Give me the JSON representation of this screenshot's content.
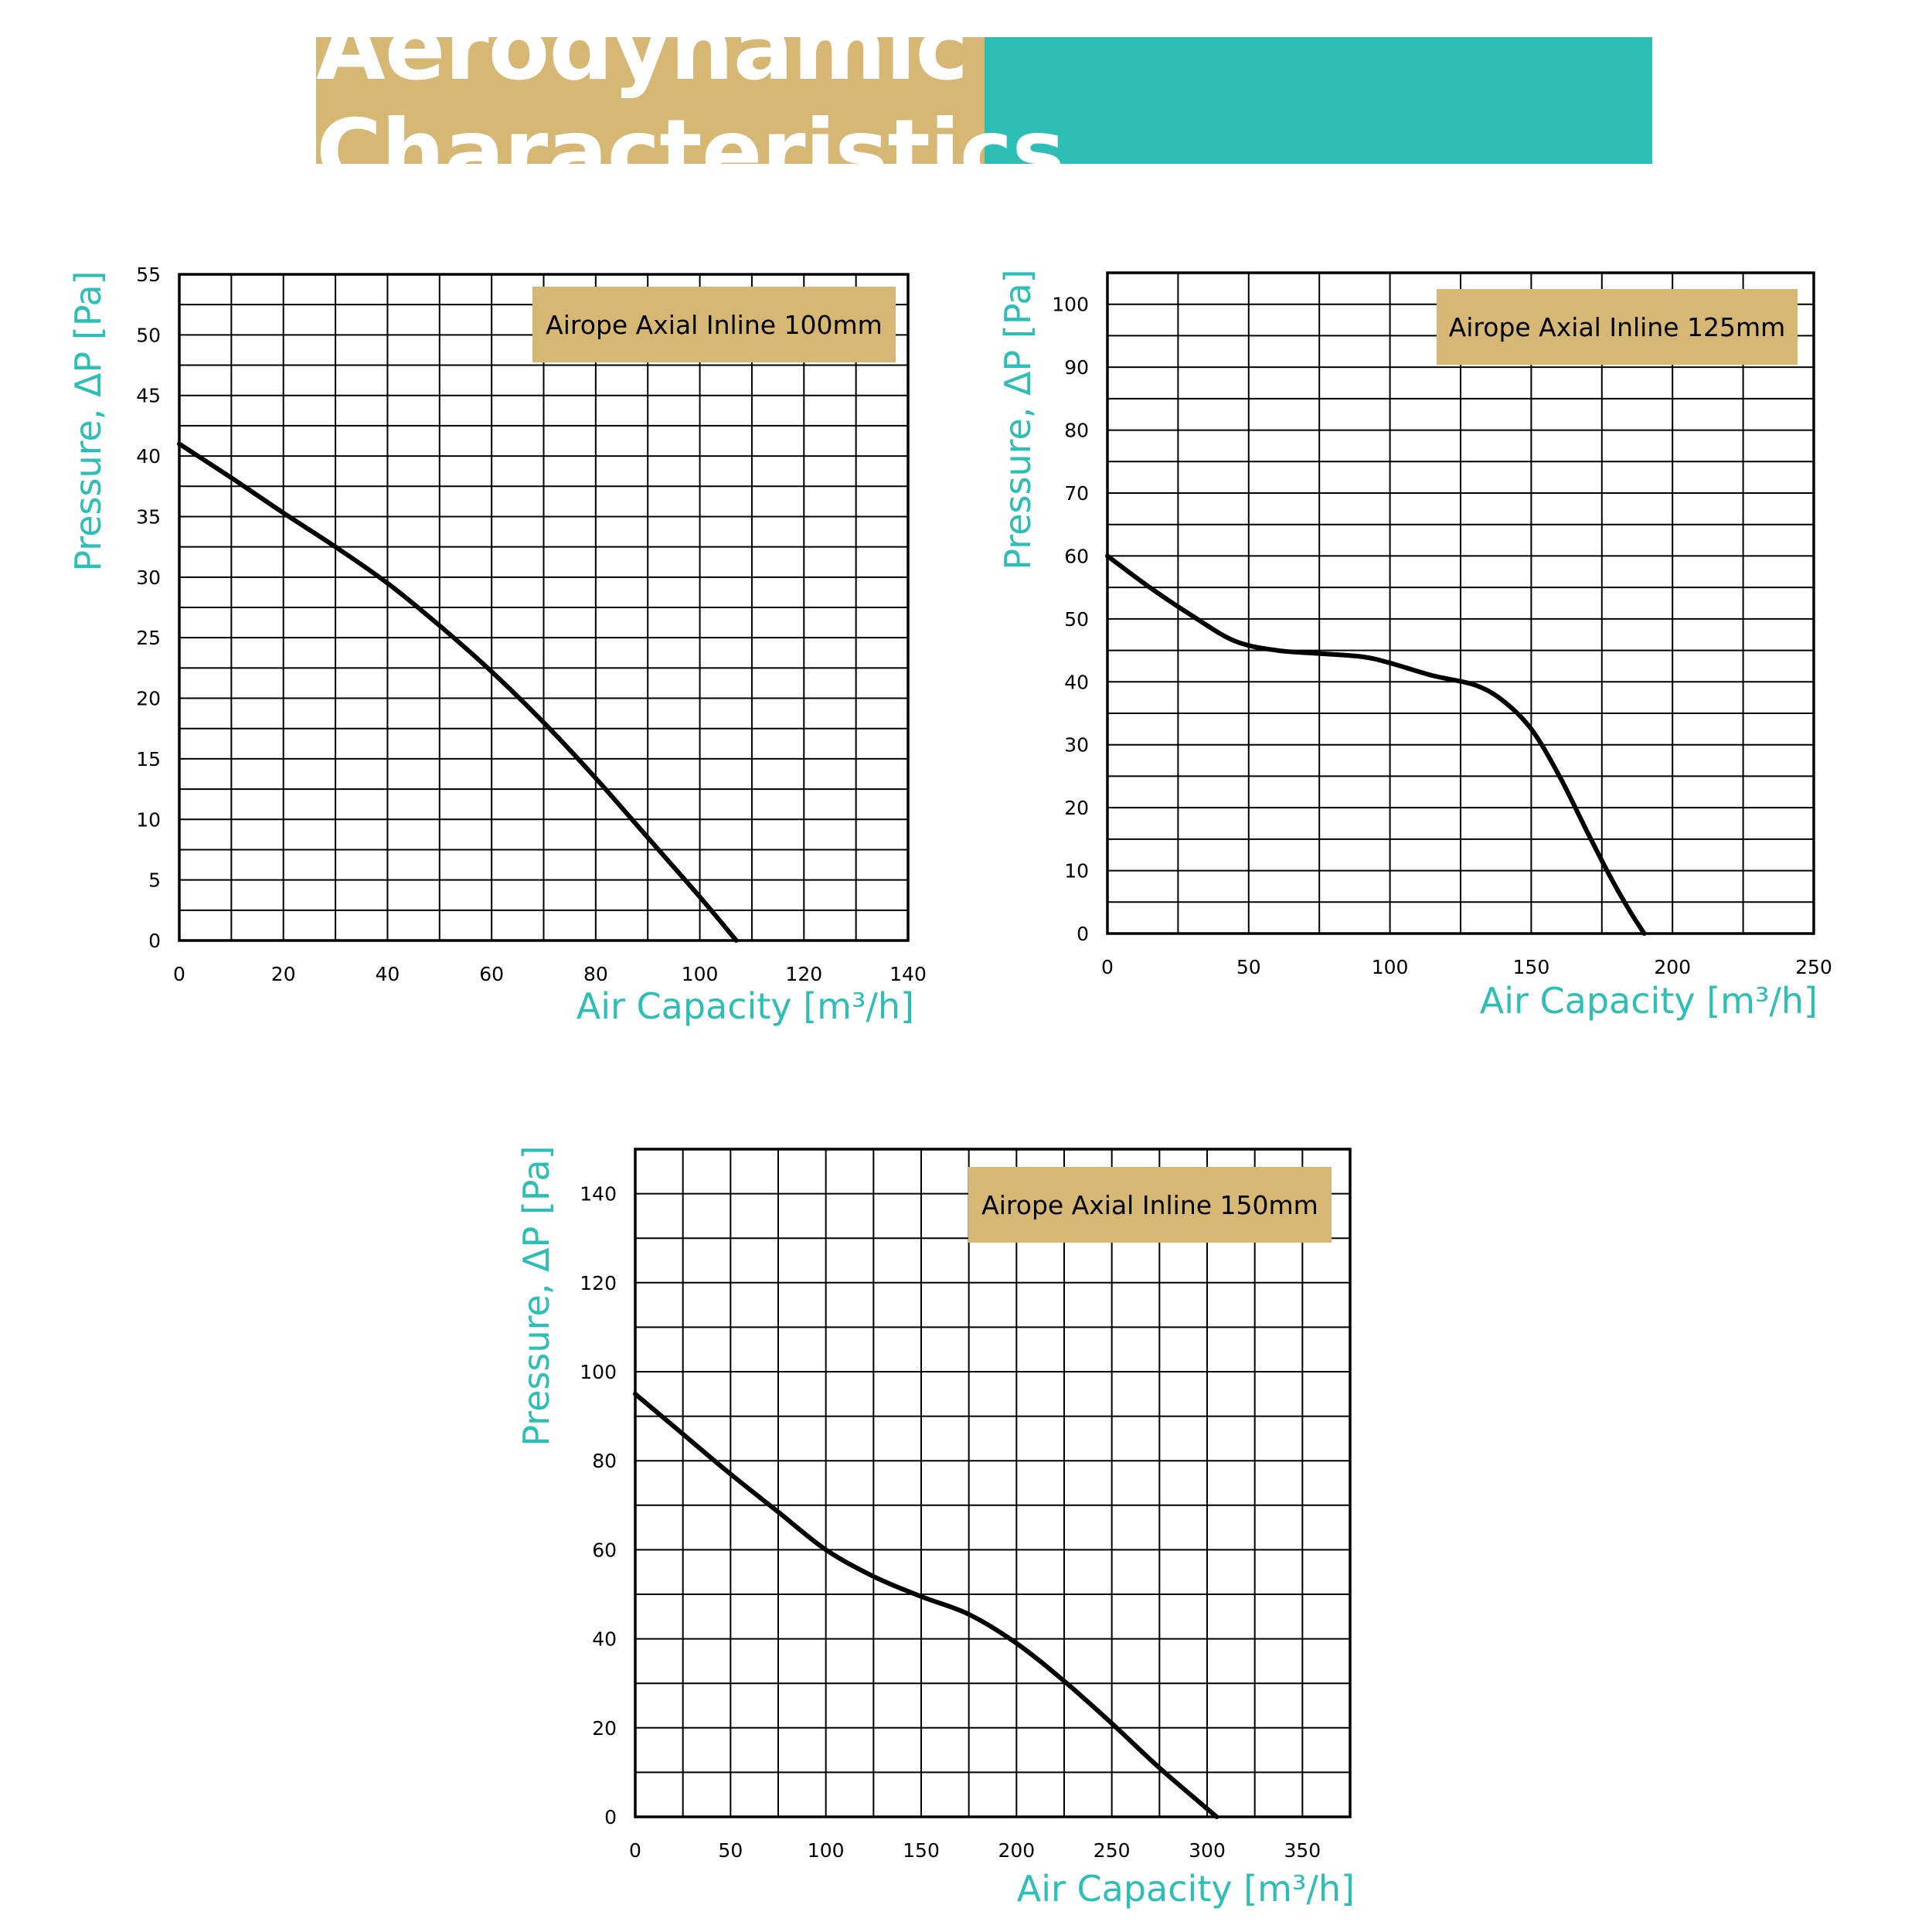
{
  "title": "Aerodynamic Characteristics",
  "colors": {
    "banner_left": "#D6B774",
    "banner_right": "#2DBFB5",
    "axis_label": "#2DBFB5",
    "legend_box": "#D6B774",
    "grid": "#000000",
    "curve": "#000000"
  },
  "chart_data": [
    {
      "type": "line",
      "legend": "Airope Axial Inline 100mm",
      "legend_position": "top-right",
      "xlabel": "Air Capacity [m³/h]",
      "ylabel": "Pressure, ΔP [Pa]",
      "xlim": [
        0,
        140
      ],
      "ylim": [
        0,
        55
      ],
      "xticks": [
        0,
        20,
        40,
        60,
        80,
        100,
        120,
        140
      ],
      "yticks": [
        0,
        5,
        10,
        15,
        20,
        25,
        30,
        35,
        40,
        45,
        50,
        55
      ],
      "x_grid_step": 10,
      "y_grid_step": 2.5,
      "grid": true,
      "series": [
        {
          "x": [
            0,
            10,
            20,
            30,
            40,
            50,
            60,
            70,
            80,
            90,
            100,
            107
          ],
          "y": [
            41,
            38.2,
            35.3,
            32.5,
            29.5,
            26,
            22.2,
            18,
            13.4,
            8.5,
            3.6,
            0
          ]
        }
      ]
    },
    {
      "type": "line",
      "legend": "Airope Axial Inline 125mm",
      "legend_position": "top-right",
      "xlabel": "Air Capacity [m³/h]",
      "ylabel": "Pressure, ΔP [Pa]",
      "xlim": [
        0,
        250
      ],
      "ylim": [
        0,
        105
      ],
      "xticks": [
        0,
        50,
        100,
        150,
        200,
        250
      ],
      "yticks": [
        0,
        10,
        20,
        30,
        40,
        50,
        60,
        70,
        80,
        90,
        100
      ],
      "x_grid_step": 25,
      "y_grid_step": 5,
      "grid": true,
      "series": [
        {
          "x": [
            0,
            15,
            30,
            45,
            60,
            75,
            90,
            100,
            115,
            130,
            140,
            150,
            160,
            170,
            178,
            185,
            190
          ],
          "y": [
            60,
            55,
            50.5,
            46.5,
            45,
            44.5,
            44,
            43,
            41,
            39.5,
            37,
            32.5,
            25,
            16,
            9,
            3.5,
            0
          ]
        }
      ]
    },
    {
      "type": "line",
      "legend": "Airope Axial Inline 150mm",
      "legend_position": "top-right",
      "xlabel": "Air Capacity [m³/h]",
      "ylabel": "Pressure, ΔP [Pa]",
      "xlim": [
        0,
        375
      ],
      "ylim": [
        0,
        150
      ],
      "xticks": [
        0,
        50,
        100,
        150,
        200,
        250,
        300,
        350
      ],
      "yticks": [
        0,
        20,
        40,
        60,
        80,
        100,
        120,
        140
      ],
      "x_grid_step": 25,
      "y_grid_step": 10,
      "grid": true,
      "series": [
        {
          "x": [
            0,
            25,
            50,
            75,
            100,
            125,
            150,
            175,
            200,
            225,
            250,
            275,
            305
          ],
          "y": [
            95,
            86,
            77,
            68.5,
            60,
            54,
            49.5,
            45.5,
            39,
            30.5,
            21,
            11,
            0
          ]
        }
      ]
    }
  ]
}
